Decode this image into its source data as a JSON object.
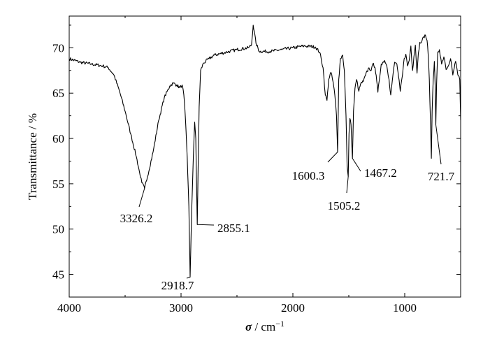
{
  "chart_data": {
    "type": "line",
    "ylabel": "Transmittance / %",
    "xlabel": {
      "symbol": "σ",
      "unit": " / cm",
      "exponent": "−1"
    },
    "xlim": [
      4000,
      500
    ],
    "ylim": [
      42.5,
      73.5
    ],
    "x_reversed": true,
    "x_ticks": [
      {
        "value": 4000,
        "label": "4000"
      },
      {
        "value": 3000,
        "label": "3000"
      },
      {
        "value": 2000,
        "label": "2000"
      },
      {
        "value": 1000,
        "label": "1000"
      }
    ],
    "y_ticks": [
      {
        "value": 45,
        "label": "45"
      },
      {
        "value": 50,
        "label": "50"
      },
      {
        "value": 55,
        "label": "55"
      },
      {
        "value": 60,
        "label": "60"
      },
      {
        "value": 65,
        "label": "65"
      },
      {
        "value": 70,
        "label": "70"
      }
    ],
    "grid": false,
    "series": [
      {
        "color": "#000000",
        "points": [
          [
            4000,
            68.8
          ],
          [
            3900,
            68.4
          ],
          [
            3800,
            68.2
          ],
          [
            3700,
            68.0
          ],
          [
            3650,
            67.8
          ],
          [
            3600,
            67.0
          ],
          [
            3550,
            65.2
          ],
          [
            3500,
            63.0
          ],
          [
            3450,
            60.5
          ],
          [
            3400,
            58.0
          ],
          [
            3370,
            56.2
          ],
          [
            3350,
            55.1
          ],
          [
            3326.2,
            54.5
          ],
          [
            3300,
            55.8
          ],
          [
            3250,
            58.5
          ],
          [
            3200,
            62.0
          ],
          [
            3150,
            64.5
          ],
          [
            3100,
            65.8
          ],
          [
            3070,
            66.1
          ],
          [
            3040,
            65.9
          ],
          [
            3010,
            65.6
          ],
          [
            2990,
            65.9
          ],
          [
            2975,
            64.8
          ],
          [
            2960,
            62.0
          ],
          [
            2945,
            58.0
          ],
          [
            2930,
            52.5
          ],
          [
            2918.7,
            44.7
          ],
          [
            2905,
            52.0
          ],
          [
            2890,
            58.0
          ],
          [
            2878,
            61.8
          ],
          [
            2868,
            60.0
          ],
          [
            2860,
            54.0
          ],
          [
            2855.1,
            50.5
          ],
          [
            2848,
            56.0
          ],
          [
            2838,
            63.5
          ],
          [
            2825,
            67.5
          ],
          [
            2800,
            68.3
          ],
          [
            2750,
            68.8
          ],
          [
            2700,
            69.2
          ],
          [
            2600,
            69.5
          ],
          [
            2500,
            69.8
          ],
          [
            2400,
            70.0
          ],
          [
            2370,
            70.3
          ],
          [
            2355,
            72.5
          ],
          [
            2345,
            71.8
          ],
          [
            2330,
            70.5
          ],
          [
            2300,
            69.6
          ],
          [
            2200,
            69.6
          ],
          [
            2100,
            69.8
          ],
          [
            2000,
            70.0
          ],
          [
            1900,
            70.2
          ],
          [
            1800,
            70.1
          ],
          [
            1760,
            69.5
          ],
          [
            1730,
            67.8
          ],
          [
            1710,
            64.8
          ],
          [
            1695,
            64.2
          ],
          [
            1680,
            66.5
          ],
          [
            1660,
            67.3
          ],
          [
            1640,
            66.2
          ],
          [
            1625,
            64.8
          ],
          [
            1610,
            62.5
          ],
          [
            1600.3,
            58.5
          ],
          [
            1590,
            66.5
          ],
          [
            1575,
            68.8
          ],
          [
            1555,
            69.2
          ],
          [
            1540,
            67.5
          ],
          [
            1525,
            62.5
          ],
          [
            1515,
            57.0
          ],
          [
            1505.2,
            55.8
          ],
          [
            1498,
            60.5
          ],
          [
            1490,
            62.2
          ],
          [
            1480,
            61.5
          ],
          [
            1467.2,
            57.8
          ],
          [
            1458,
            63.0
          ],
          [
            1445,
            65.5
          ],
          [
            1430,
            66.5
          ],
          [
            1410,
            65.2
          ],
          [
            1395,
            66.0
          ],
          [
            1370,
            66.3
          ],
          [
            1350,
            67.0
          ],
          [
            1320,
            67.8
          ],
          [
            1300,
            67.5
          ],
          [
            1280,
            68.3
          ],
          [
            1265,
            67.8
          ],
          [
            1250,
            66.3
          ],
          [
            1240,
            65.1
          ],
          [
            1230,
            66.2
          ],
          [
            1210,
            68.2
          ],
          [
            1180,
            68.6
          ],
          [
            1160,
            68.0
          ],
          [
            1140,
            66.5
          ],
          [
            1125,
            64.8
          ],
          [
            1110,
            66.5
          ],
          [
            1090,
            68.4
          ],
          [
            1070,
            68.2
          ],
          [
            1055,
            66.8
          ],
          [
            1040,
            65.2
          ],
          [
            1020,
            67.0
          ],
          [
            1005,
            68.8
          ],
          [
            990,
            69.3
          ],
          [
            975,
            68.0
          ],
          [
            960,
            68.6
          ],
          [
            945,
            70.2
          ],
          [
            930,
            67.5
          ],
          [
            918,
            69.0
          ],
          [
            905,
            70.3
          ],
          [
            890,
            67.2
          ],
          [
            878,
            69.4
          ],
          [
            865,
            70.6
          ],
          [
            845,
            70.8
          ],
          [
            830,
            71.2
          ],
          [
            815,
            71.4
          ],
          [
            800,
            70.8
          ],
          [
            790,
            69.2
          ],
          [
            780,
            66.5
          ],
          [
            770,
            62.0
          ],
          [
            762,
            57.8
          ],
          [
            755,
            63.0
          ],
          [
            745,
            66.5
          ],
          [
            735,
            68.5
          ],
          [
            728,
            66.0
          ],
          [
            721.7,
            61.5
          ],
          [
            715,
            66.0
          ],
          [
            705,
            69.5
          ],
          [
            690,
            69.8
          ],
          [
            670,
            68.2
          ],
          [
            650,
            69.0
          ],
          [
            630,
            67.6
          ],
          [
            610,
            68.0
          ],
          [
            590,
            68.8
          ],
          [
            570,
            67.0
          ],
          [
            545,
            68.5
          ],
          [
            525,
            67.0
          ],
          [
            508,
            66.5
          ],
          [
            500,
            62.0
          ]
        ]
      }
    ],
    "annotations": [
      {
        "label": "3326.2",
        "x": 3326.2,
        "y": 54.5
      },
      {
        "label": "2918.7",
        "x": 2918.7,
        "y": 44.7
      },
      {
        "label": "2855.1",
        "x": 2855.1,
        "y": 50.5
      },
      {
        "label": "1600.3",
        "x": 1600.3,
        "y": 58.5
      },
      {
        "label": "1505.2",
        "x": 1505.2,
        "y": 55.8
      },
      {
        "label": "1467.2",
        "x": 1467.2,
        "y": 57.8
      },
      {
        "label": "721.7",
        "x": 721.7,
        "y": 61.5
      }
    ]
  }
}
